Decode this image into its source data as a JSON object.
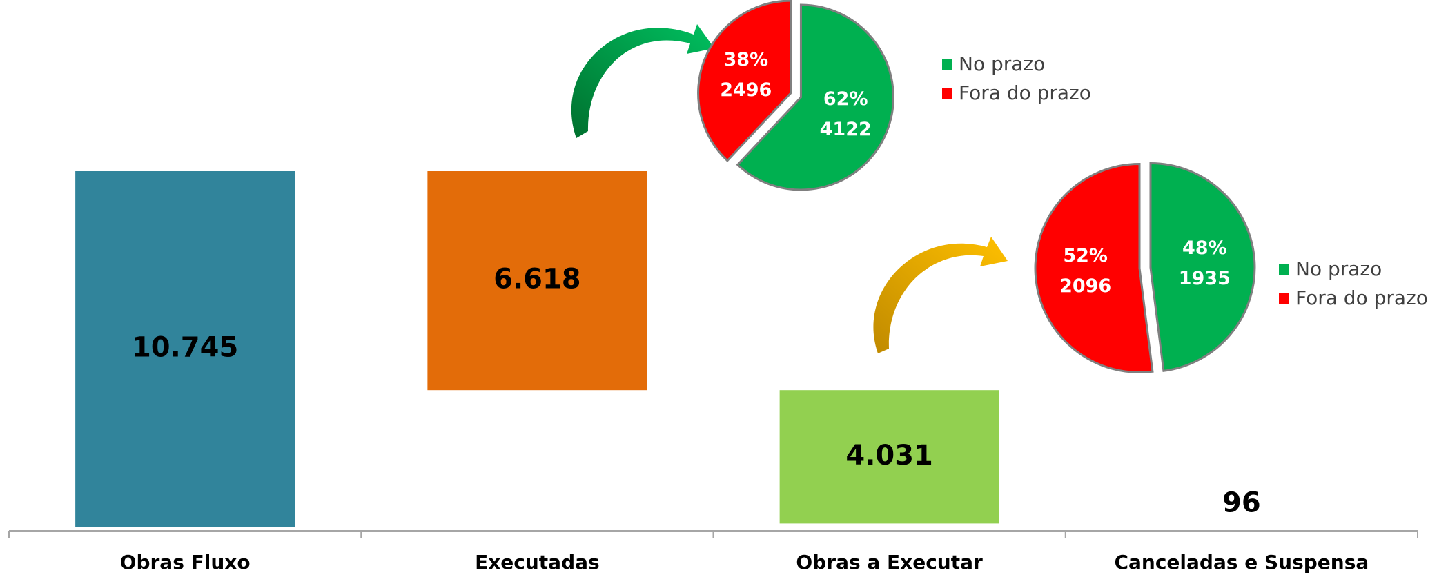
{
  "chart_data": [
    {
      "type": "waterfall",
      "categories": [
        "Obras Fluxo",
        "Executadas",
        "Obras a Executar",
        "Canceladas e Suspensa"
      ],
      "values": [
        10745,
        6618,
        4031,
        96
      ],
      "value_labels": [
        "10.745",
        "6.618",
        "4.031",
        "96"
      ],
      "colors": [
        "#31849b",
        "#e36c09",
        "#92d050"
      ]
    },
    {
      "type": "pie",
      "categories": [
        "No prazo",
        "Fora do prazo"
      ],
      "colors": [
        "#00b050",
        "#ff0000"
      ],
      "values": [
        62,
        38
      ],
      "value_labels": [
        "62%",
        "38%"
      ],
      "counts": [
        4122,
        2496
      ]
    },
    {
      "type": "pie",
      "categories": [
        "No prazo",
        "Fora do prazo"
      ],
      "colors": [
        "#00b050",
        "#ff0000"
      ],
      "values": [
        48,
        52
      ],
      "value_labels": [
        "48%",
        "52%"
      ],
      "counts": [
        1935,
        2096
      ]
    }
  ]
}
